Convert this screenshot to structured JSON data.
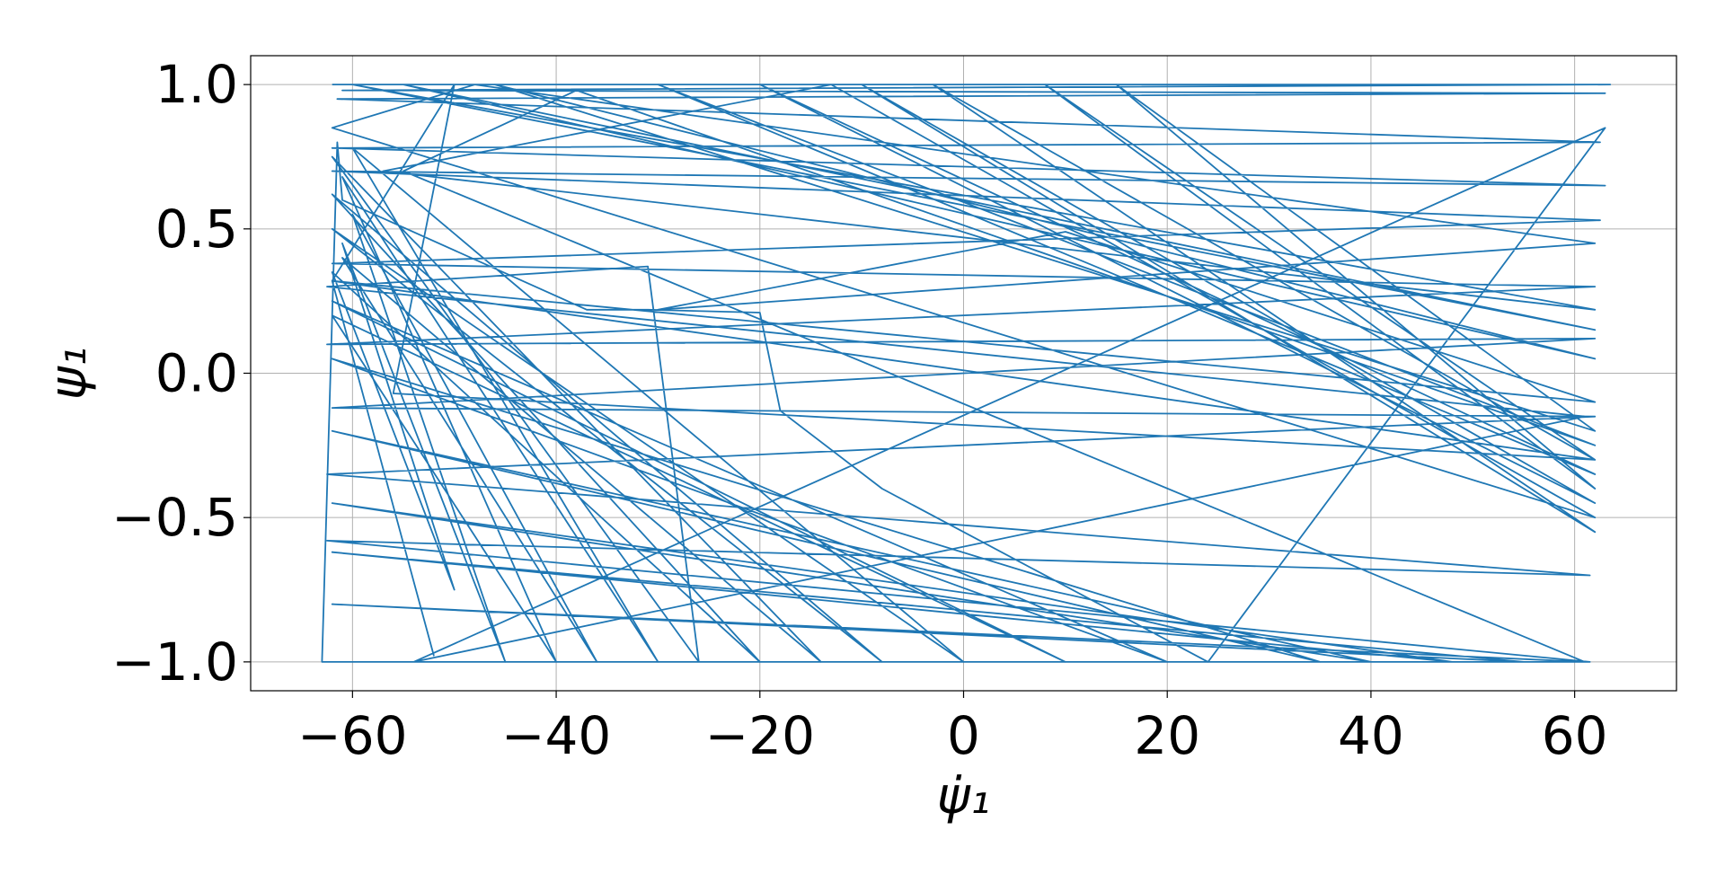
{
  "chart_data": {
    "type": "line",
    "title": "",
    "xlabel": "ψ̇₁",
    "ylabel": "ψ₁",
    "xlim": [
      -70,
      70
    ],
    "ylim": [
      -1.1,
      1.1
    ],
    "xticks": [
      -60,
      -40,
      -20,
      0,
      20,
      40,
      60
    ],
    "yticks": [
      1.0,
      0.5,
      0.0,
      -0.5,
      -1.0
    ],
    "xtick_labels": [
      "−60",
      "−40",
      "−20",
      "0",
      "20",
      "40",
      "60"
    ],
    "ytick_labels": [
      "1.0",
      "0.5",
      "0.0",
      "−0.5",
      "−1.0"
    ],
    "grid": true,
    "line_color": "#1f77b4",
    "series": [
      {
        "points": [
          [
            -62,
            1.0
          ],
          [
            63.5,
            1.0
          ],
          [
            -61,
            0.98
          ],
          [
            63,
            0.97
          ],
          [
            -61.5,
            0.95
          ],
          [
            62.5,
            0.8
          ],
          [
            -62,
            0.78
          ],
          [
            63,
            0.65
          ],
          [
            -62,
            0.7
          ],
          [
            62.5,
            0.53
          ],
          [
            -62,
            0.38
          ],
          [
            62,
            0.3
          ],
          [
            -62.5,
            0.1
          ],
          [
            62,
            0.12
          ],
          [
            -62,
            -0.12
          ],
          [
            62,
            -0.15
          ],
          [
            -62.5,
            -0.35
          ],
          [
            61.5,
            -0.7
          ],
          [
            -62.5,
            -0.58
          ],
          [
            61.5,
            -1.0
          ],
          [
            -63,
            -1.0
          ],
          [
            -61.5,
            0.8
          ],
          [
            -61,
            0.6
          ],
          [
            -37,
            0.22
          ],
          [
            -31,
            0.22
          ],
          [
            -20,
            0.21
          ],
          [
            -18,
            -0.13
          ],
          [
            -8,
            -0.4
          ],
          [
            24,
            -1.0
          ],
          [
            63,
            0.85
          ],
          [
            -54,
            -1.0
          ],
          [
            61,
            -0.15
          ],
          [
            -62.5,
            0.3
          ],
          [
            -31,
            0.37
          ],
          [
            -26,
            -1.0
          ],
          [
            -62,
            0.75
          ],
          [
            -14,
            -1.0
          ],
          [
            -61,
            0.4
          ],
          [
            -36,
            -1.0
          ],
          [
            -60,
            0.55
          ],
          [
            -45,
            -1.0
          ],
          [
            -61,
            0.45
          ],
          [
            -50,
            -0.75
          ],
          [
            -62,
            0.35
          ],
          [
            -20,
            -1.0
          ],
          [
            -62,
            0.62
          ],
          [
            -8,
            -1.0
          ],
          [
            -62,
            0.5
          ],
          [
            0,
            -1.0
          ],
          [
            -60,
            0.78
          ],
          [
            -30,
            -1.0
          ],
          [
            -61,
            0.68
          ],
          [
            -40,
            -1.0
          ],
          [
            -62,
            0.2
          ],
          [
            10,
            -1.0
          ],
          [
            -62,
            0.25
          ],
          [
            20,
            -1.0
          ],
          [
            -62,
            0.05
          ],
          [
            35,
            -1.0
          ],
          [
            -62,
            -0.2
          ],
          [
            40,
            -1.0
          ],
          [
            -62,
            -0.45
          ],
          [
            48,
            -1.0
          ],
          [
            -62,
            -0.62
          ],
          [
            55,
            -1.0
          ],
          [
            -62,
            -0.8
          ],
          [
            61,
            -1.0
          ],
          [
            -55,
            0.7
          ],
          [
            -38,
            0.98
          ],
          [
            62,
            -0.25
          ],
          [
            -30,
            1.0
          ],
          [
            62,
            -0.35
          ],
          [
            -20,
            1.0
          ],
          [
            62,
            -0.45
          ],
          [
            -10,
            1.0
          ],
          [
            62,
            -0.55
          ],
          [
            -3,
            1.0
          ],
          [
            62,
            -0.3
          ],
          [
            8,
            1.0
          ],
          [
            62,
            -0.4
          ],
          [
            15,
            1.0
          ],
          [
            62,
            -0.2
          ],
          [
            -46,
            1.0
          ],
          [
            62,
            0.05
          ],
          [
            -55,
            1.0
          ],
          [
            62,
            0.15
          ],
          [
            -60,
            1.0
          ],
          [
            62,
            0.22
          ],
          [
            -57,
            0.7
          ],
          [
            -13,
            1.0
          ],
          [
            62,
            -0.5
          ],
          [
            -62,
            0.85
          ],
          [
            -48,
            1.0
          ],
          [
            62,
            0.45
          ],
          [
            -30,
            0.22
          ],
          [
            10,
            0.49
          ],
          [
            62,
            -0.1
          ],
          [
            -62,
            0.32
          ],
          [
            62,
            -0.3
          ],
          [
            -56,
            -0.07
          ],
          [
            -50,
            1.0
          ],
          [
            -62,
            0.32
          ],
          [
            -52,
            -0.98
          ]
        ]
      }
    ]
  }
}
